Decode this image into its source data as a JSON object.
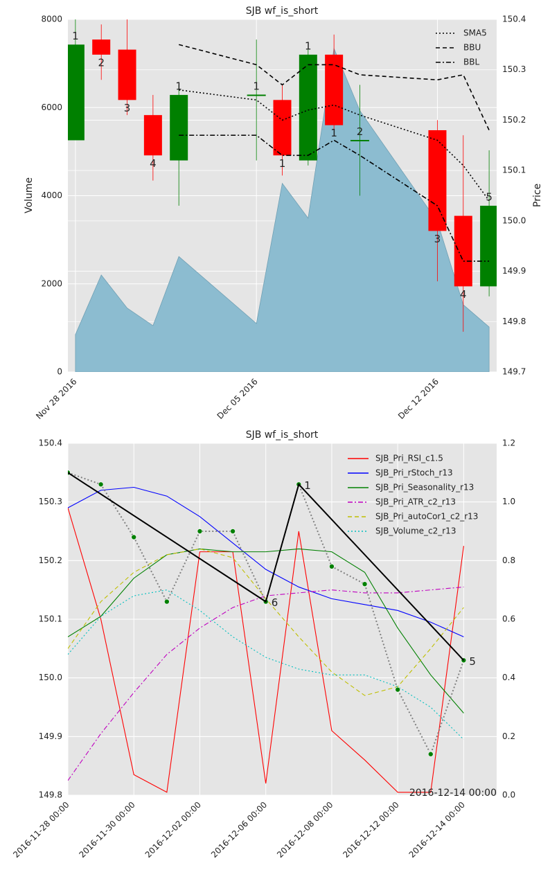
{
  "chart_data": [
    {
      "type": "candlestick",
      "title": "SJB wf_is_short",
      "ylabel": "Volume",
      "y2label": "Price",
      "x": [
        "2016-11-28",
        "2016-11-29",
        "2016-11-30",
        "2016-12-01",
        "2016-12-02",
        "2016-12-05",
        "2016-12-06",
        "2016-12-07",
        "2016-12-08",
        "2016-12-09",
        "2016-12-12",
        "2016-12-13",
        "2016-12-14"
      ],
      "xlim": [
        "2016-11-27 17:00",
        "2016-12-14 07:00"
      ],
      "xticks": [
        {
          "value": "2016-11-28",
          "label": "Nov 28 2016"
        },
        {
          "value": "2016-12-05",
          "label": "Dec 05 2016"
        },
        {
          "value": "2016-12-12",
          "label": "Dec 12 2016"
        }
      ],
      "ylim": [
        0,
        8000
      ],
      "yticks": [
        0,
        2000,
        4000,
        6000,
        8000
      ],
      "y2lim": [
        149.7,
        150.4
      ],
      "y2ticks": [
        149.7,
        149.8,
        149.9,
        {
          "value": 150,
          "label": "150.0"
        },
        150.1,
        150.2,
        150.3,
        150.4
      ],
      "volume": [
        850,
        2200,
        1450,
        1050,
        2620,
        1100,
        4280,
        3490,
        7340,
        5930,
        3410,
        1525,
        1020
      ],
      "volume_color": "#8cbcd0",
      "open": [
        150.16,
        150.36,
        150.34,
        150.21,
        150.12,
        150.25,
        150.24,
        150.12,
        150.33,
        150.16,
        150.18,
        150.01,
        149.87
      ],
      "high": [
        150.4,
        150.39,
        150.4,
        150.25,
        150.27,
        150.36,
        150.27,
        150.34,
        150.37,
        150.27,
        150.2,
        150.17,
        150.14
      ],
      "low": [
        150.16,
        150.28,
        150.21,
        150.08,
        150.03,
        150.12,
        150.09,
        150.11,
        150.18,
        150.05,
        149.88,
        149.78,
        149.85
      ],
      "close": [
        150.35,
        150.33,
        150.24,
        150.13,
        150.25,
        150.25,
        150.13,
        150.33,
        150.19,
        150.16,
        149.98,
        149.87,
        150.03
      ],
      "up_color": "#008000",
      "down_color": "#ff0000",
      "candle_labels": [
        "1",
        "2",
        "3",
        "4",
        "1",
        "1",
        "1",
        "1",
        "1",
        "2",
        "3",
        "4",
        "5"
      ],
      "series": [
        {
          "name": "SMA5",
          "color": "#000000",
          "style": "dotted",
          "axis": "y2",
          "values": [
            null,
            null,
            null,
            null,
            150.26,
            150.24,
            150.2,
            150.22,
            150.23,
            150.21,
            150.16,
            150.11,
            150.04
          ]
        },
        {
          "name": "BBU",
          "color": "#000000",
          "style": "dashed",
          "axis": "y2",
          "values": [
            null,
            null,
            null,
            null,
            150.35,
            150.31,
            150.27,
            150.31,
            150.31,
            150.29,
            150.28,
            150.29,
            150.18
          ]
        },
        {
          "name": "BBL",
          "color": "#000000",
          "style": "dashdot",
          "axis": "y2",
          "values": [
            null,
            null,
            null,
            null,
            150.17,
            150.17,
            150.13,
            150.13,
            150.16,
            150.13,
            150.03,
            149.92,
            149.92
          ]
        }
      ],
      "legend": "upper right",
      "grid": true
    },
    {
      "type": "line",
      "title": "SJB wf_is_short",
      "categories": [
        "2016-11-28 00:00",
        null,
        "2016-11-30 00:00",
        null,
        "2016-12-02 00:00",
        null,
        "2016-12-06 00:00",
        null,
        "2016-12-08 00:00",
        null,
        "2016-12-12 00:00",
        null,
        "2016-12-14 00:00"
      ],
      "xlim": [
        0,
        13
      ],
      "ylim": [
        149.8,
        150.4
      ],
      "yticks": [
        149.8,
        149.9,
        {
          "value": 150,
          "label": "150.0"
        },
        150.1,
        150.2,
        150.3,
        150.4
      ],
      "y2lim": [
        0,
        1.2
      ],
      "y2ticks": [
        {
          "value": 0,
          "label": "0.0"
        },
        0.2,
        0.4,
        0.6,
        0.8,
        {
          "value": 1,
          "label": "1.0"
        },
        1.2
      ],
      "price": {
        "color": "#808080",
        "marker_color": "#008000",
        "style": "dotted",
        "values": [
          150.35,
          150.33,
          150.24,
          150.13,
          150.25,
          150.25,
          150.13,
          150.33,
          150.19,
          150.16,
          149.98,
          149.87,
          150.03
        ]
      },
      "zigzag": {
        "color": "#000000",
        "x": [
          0,
          6,
          7,
          12
        ],
        "values": [
          150.35,
          150.13,
          150.33,
          150.03
        ],
        "labels": [
          null,
          "6",
          "1",
          "5"
        ]
      },
      "series": [
        {
          "name": "SJB_Pri_RSI_c1.5",
          "color": "#ff0000",
          "style": "solid",
          "axis": "y2",
          "values": [
            0.98,
            0.6,
            0.07,
            0.01,
            0.83,
            0.83,
            0.04,
            0.9,
            0.22,
            0.12,
            0.01,
            0.01,
            0.85
          ]
        },
        {
          "name": "SJB_Pri_rStoch_r13",
          "color": "#0000ff",
          "style": "solid",
          "axis": "y2",
          "values": [
            0.98,
            1.04,
            1.05,
            1.02,
            0.95,
            0.86,
            0.77,
            0.71,
            0.67,
            0.65,
            0.63,
            0.59,
            0.54
          ]
        },
        {
          "name": "SJB_Pri_Seasonality_r13",
          "color": "#008000",
          "style": "solid",
          "axis": "y2",
          "values": [
            0.54,
            0.61,
            0.74,
            0.82,
            0.84,
            0.83,
            0.83,
            0.84,
            0.83,
            0.76,
            0.57,
            0.41,
            0.28
          ]
        },
        {
          "name": "SJB_Pri_ATR_c2_r13",
          "color": "#bf00bf",
          "style": "dashdot",
          "axis": "y2",
          "values": [
            0.05,
            0.21,
            0.35,
            0.48,
            0.57,
            0.64,
            0.68,
            0.69,
            0.7,
            0.69,
            0.69,
            0.7,
            0.71
          ]
        },
        {
          "name": "SJB_Pri_autoCor1_c2_r13",
          "color": "#bfbf00",
          "style": "dashed",
          "axis": "y2",
          "values": [
            0.5,
            0.66,
            0.76,
            0.82,
            0.84,
            0.81,
            0.67,
            0.54,
            0.42,
            0.34,
            0.37,
            0.5,
            0.64
          ]
        },
        {
          "name": "SJB_Volume_c2_r13",
          "color": "#00bfbf",
          "style": "dotted",
          "axis": "y2",
          "values": [
            0.48,
            0.61,
            0.68,
            0.7,
            0.63,
            0.54,
            0.47,
            0.43,
            0.41,
            0.41,
            0.37,
            0.3,
            0.19
          ]
        }
      ],
      "annotation": "2016-12-14 00:00",
      "legend": "upper right",
      "grid": true
    }
  ]
}
